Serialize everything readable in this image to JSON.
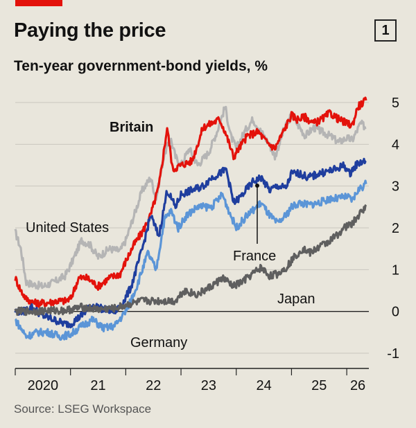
{
  "header": {
    "title": "Paying the price",
    "badge": "1",
    "subtitle": "Ten-year government-bond yields, %"
  },
  "footer": {
    "source": "Source: LSEG Workspace"
  },
  "chart_data": {
    "type": "line",
    "title": "Paying the price",
    "subtitle": "Ten-year government-bond yields, %",
    "xlabel": "",
    "ylabel": "",
    "xlim": [
      2020.0,
      2026.4
    ],
    "ylim": [
      -1,
      5
    ],
    "y_ticks": [
      -1,
      0,
      1,
      2,
      3,
      4,
      5
    ],
    "x_ticks": [
      {
        "label": "2020",
        "pos": 2020.5
      },
      {
        "label": "21",
        "pos": 2021.5
      },
      {
        "label": "22",
        "pos": 2022.5
      },
      {
        "label": "23",
        "pos": 2023.5
      },
      {
        "label": "24",
        "pos": 2024.5
      },
      {
        "label": "25",
        "pos": 2025.5
      },
      {
        "label": "26",
        "pos": 2026.2
      }
    ],
    "x_boundaries": [
      2020,
      2021,
      2022,
      2023,
      2024,
      2025,
      2026
    ],
    "grid": true,
    "y_axis_side": "right",
    "colors": {
      "Britain": "#e3120b",
      "United States": "#b5b5b5",
      "Germany": "#5b95d7",
      "France": "#1f3e9e",
      "Japan": "#5f5f5f",
      "background": "#e9e6dc",
      "grid": "#c9c6be"
    },
    "series": [
      {
        "name": "United States",
        "points": [
          [
            2020.0,
            1.9
          ],
          [
            2020.1,
            1.5
          ],
          [
            2020.2,
            0.7
          ],
          [
            2020.3,
            0.65
          ],
          [
            2020.5,
            0.6
          ],
          [
            2020.7,
            0.7
          ],
          [
            2020.9,
            0.85
          ],
          [
            2021.0,
            1.1
          ],
          [
            2021.1,
            1.4
          ],
          [
            2021.2,
            1.7
          ],
          [
            2021.35,
            1.6
          ],
          [
            2021.5,
            1.3
          ],
          [
            2021.7,
            1.5
          ],
          [
            2021.9,
            1.45
          ],
          [
            2022.0,
            1.7
          ],
          [
            2022.15,
            2.3
          ],
          [
            2022.3,
            2.9
          ],
          [
            2022.45,
            3.2
          ],
          [
            2022.55,
            2.7
          ],
          [
            2022.7,
            3.8
          ],
          [
            2022.82,
            4.1
          ],
          [
            2022.9,
            3.7
          ],
          [
            2023.0,
            3.5
          ],
          [
            2023.15,
            3.9
          ],
          [
            2023.3,
            3.5
          ],
          [
            2023.5,
            3.8
          ],
          [
            2023.65,
            4.3
          ],
          [
            2023.8,
            4.9
          ],
          [
            2023.9,
            4.2
          ],
          [
            2024.0,
            3.9
          ],
          [
            2024.15,
            4.3
          ],
          [
            2024.3,
            4.6
          ],
          [
            2024.45,
            4.3
          ],
          [
            2024.6,
            4.0
          ],
          [
            2024.7,
            3.7
          ],
          [
            2024.85,
            4.3
          ],
          [
            2025.0,
            4.7
          ],
          [
            2025.1,
            4.5
          ],
          [
            2025.25,
            4.2
          ],
          [
            2025.4,
            4.4
          ],
          [
            2025.55,
            4.3
          ],
          [
            2025.7,
            4.2
          ],
          [
            2025.85,
            4.05
          ],
          [
            2026.0,
            4.15
          ],
          [
            2026.1,
            4.1
          ],
          [
            2026.25,
            4.5
          ],
          [
            2026.35,
            4.4
          ]
        ]
      },
      {
        "name": "Britain",
        "points": [
          [
            2020.0,
            0.8
          ],
          [
            2020.1,
            0.5
          ],
          [
            2020.2,
            0.3
          ],
          [
            2020.35,
            0.2
          ],
          [
            2020.55,
            0.2
          ],
          [
            2020.75,
            0.25
          ],
          [
            2020.9,
            0.25
          ],
          [
            2021.0,
            0.3
          ],
          [
            2021.15,
            0.8
          ],
          [
            2021.3,
            0.8
          ],
          [
            2021.5,
            0.6
          ],
          [
            2021.7,
            0.8
          ],
          [
            2021.9,
            0.9
          ],
          [
            2022.0,
            1.2
          ],
          [
            2022.15,
            1.6
          ],
          [
            2022.3,
            1.9
          ],
          [
            2022.45,
            2.3
          ],
          [
            2022.6,
            3.0
          ],
          [
            2022.75,
            4.4
          ],
          [
            2022.85,
            3.4
          ],
          [
            2023.0,
            3.5
          ],
          [
            2023.2,
            3.6
          ],
          [
            2023.4,
            4.4
          ],
          [
            2023.55,
            4.5
          ],
          [
            2023.7,
            4.6
          ],
          [
            2023.8,
            4.3
          ],
          [
            2023.95,
            3.7
          ],
          [
            2024.05,
            3.9
          ],
          [
            2024.2,
            4.2
          ],
          [
            2024.4,
            4.3
          ],
          [
            2024.55,
            4.05
          ],
          [
            2024.7,
            3.9
          ],
          [
            2024.85,
            4.3
          ],
          [
            2025.0,
            4.7
          ],
          [
            2025.1,
            4.6
          ],
          [
            2025.25,
            4.65
          ],
          [
            2025.4,
            4.5
          ],
          [
            2025.55,
            4.6
          ],
          [
            2025.7,
            4.75
          ],
          [
            2025.85,
            4.6
          ],
          [
            2026.0,
            4.5
          ],
          [
            2026.1,
            4.45
          ],
          [
            2026.2,
            4.9
          ],
          [
            2026.35,
            5.05
          ]
        ]
      },
      {
        "name": "France",
        "points": [
          [
            2020.0,
            0.0
          ],
          [
            2020.15,
            0.0
          ],
          [
            2020.3,
            0.1
          ],
          [
            2020.5,
            -0.1
          ],
          [
            2020.7,
            -0.2
          ],
          [
            2020.9,
            -0.3
          ],
          [
            2021.0,
            -0.3
          ],
          [
            2021.2,
            -0.1
          ],
          [
            2021.4,
            0.15
          ],
          [
            2021.6,
            0.05
          ],
          [
            2021.8,
            0.0
          ],
          [
            2021.95,
            0.2
          ],
          [
            2022.1,
            0.6
          ],
          [
            2022.3,
            1.5
          ],
          [
            2022.45,
            2.3
          ],
          [
            2022.6,
            1.8
          ],
          [
            2022.75,
            2.9
          ],
          [
            2022.9,
            2.5
          ],
          [
            2023.0,
            2.8
          ],
          [
            2023.2,
            2.9
          ],
          [
            2023.4,
            3.0
          ],
          [
            2023.55,
            3.2
          ],
          [
            2023.7,
            3.3
          ],
          [
            2023.82,
            3.4
          ],
          [
            2023.95,
            2.6
          ],
          [
            2024.05,
            2.7
          ],
          [
            2024.3,
            3.1
          ],
          [
            2024.45,
            3.2
          ],
          [
            2024.6,
            2.9
          ],
          [
            2024.75,
            3.0
          ],
          [
            2024.9,
            2.95
          ],
          [
            2025.0,
            3.3
          ],
          [
            2025.15,
            3.3
          ],
          [
            2025.3,
            3.2
          ],
          [
            2025.5,
            3.3
          ],
          [
            2025.65,
            3.35
          ],
          [
            2025.8,
            3.4
          ],
          [
            2025.95,
            3.5
          ],
          [
            2026.05,
            3.3
          ],
          [
            2026.2,
            3.55
          ],
          [
            2026.35,
            3.6
          ]
        ]
      },
      {
        "name": "Germany",
        "points": [
          [
            2020.0,
            -0.2
          ],
          [
            2020.1,
            -0.4
          ],
          [
            2020.2,
            -0.6
          ],
          [
            2020.4,
            -0.5
          ],
          [
            2020.6,
            -0.5
          ],
          [
            2020.8,
            -0.6
          ],
          [
            2021.0,
            -0.55
          ],
          [
            2021.2,
            -0.35
          ],
          [
            2021.4,
            -0.2
          ],
          [
            2021.6,
            -0.4
          ],
          [
            2021.8,
            -0.35
          ],
          [
            2022.0,
            0.0
          ],
          [
            2022.2,
            0.6
          ],
          [
            2022.4,
            1.4
          ],
          [
            2022.55,
            1.0
          ],
          [
            2022.7,
            2.2
          ],
          [
            2022.82,
            2.4
          ],
          [
            2022.95,
            2.0
          ],
          [
            2023.1,
            2.3
          ],
          [
            2023.3,
            2.5
          ],
          [
            2023.55,
            2.5
          ],
          [
            2023.75,
            2.8
          ],
          [
            2023.9,
            2.3
          ],
          [
            2024.0,
            2.0
          ],
          [
            2024.2,
            2.3
          ],
          [
            2024.45,
            2.6
          ],
          [
            2024.6,
            2.3
          ],
          [
            2024.75,
            2.1
          ],
          [
            2024.9,
            2.3
          ],
          [
            2025.0,
            2.5
          ],
          [
            2025.15,
            2.6
          ],
          [
            2025.3,
            2.55
          ],
          [
            2025.5,
            2.6
          ],
          [
            2025.7,
            2.7
          ],
          [
            2025.85,
            2.7
          ],
          [
            2026.0,
            2.75
          ],
          [
            2026.1,
            2.65
          ],
          [
            2026.2,
            2.9
          ],
          [
            2026.35,
            3.05
          ]
        ]
      },
      {
        "name": "Japan",
        "points": [
          [
            2020.0,
            0.0
          ],
          [
            2020.3,
            0.0
          ],
          [
            2020.6,
            0.02
          ],
          [
            2020.9,
            0.02
          ],
          [
            2021.2,
            0.1
          ],
          [
            2021.5,
            0.05
          ],
          [
            2021.8,
            0.07
          ],
          [
            2022.0,
            0.15
          ],
          [
            2022.3,
            0.25
          ],
          [
            2022.6,
            0.25
          ],
          [
            2022.9,
            0.25
          ],
          [
            2023.05,
            0.5
          ],
          [
            2023.3,
            0.4
          ],
          [
            2023.55,
            0.6
          ],
          [
            2023.75,
            0.8
          ],
          [
            2023.95,
            0.6
          ],
          [
            2024.1,
            0.7
          ],
          [
            2024.3,
            0.9
          ],
          [
            2024.45,
            1.05
          ],
          [
            2024.6,
            0.85
          ],
          [
            2024.75,
            0.9
          ],
          [
            2024.9,
            1.05
          ],
          [
            2025.05,
            1.3
          ],
          [
            2025.2,
            1.5
          ],
          [
            2025.35,
            1.4
          ],
          [
            2025.5,
            1.55
          ],
          [
            2025.65,
            1.65
          ],
          [
            2025.8,
            1.8
          ],
          [
            2025.95,
            2.0
          ],
          [
            2026.1,
            2.1
          ],
          [
            2026.25,
            2.35
          ],
          [
            2026.35,
            2.55
          ]
        ]
      }
    ],
    "annotations": [
      {
        "text": "Britain",
        "bold": true
      },
      {
        "text": "United States",
        "bold": false
      },
      {
        "text": "France",
        "bold": false
      },
      {
        "text": "Japan",
        "bold": false
      },
      {
        "text": "Germany",
        "bold": false
      }
    ]
  }
}
